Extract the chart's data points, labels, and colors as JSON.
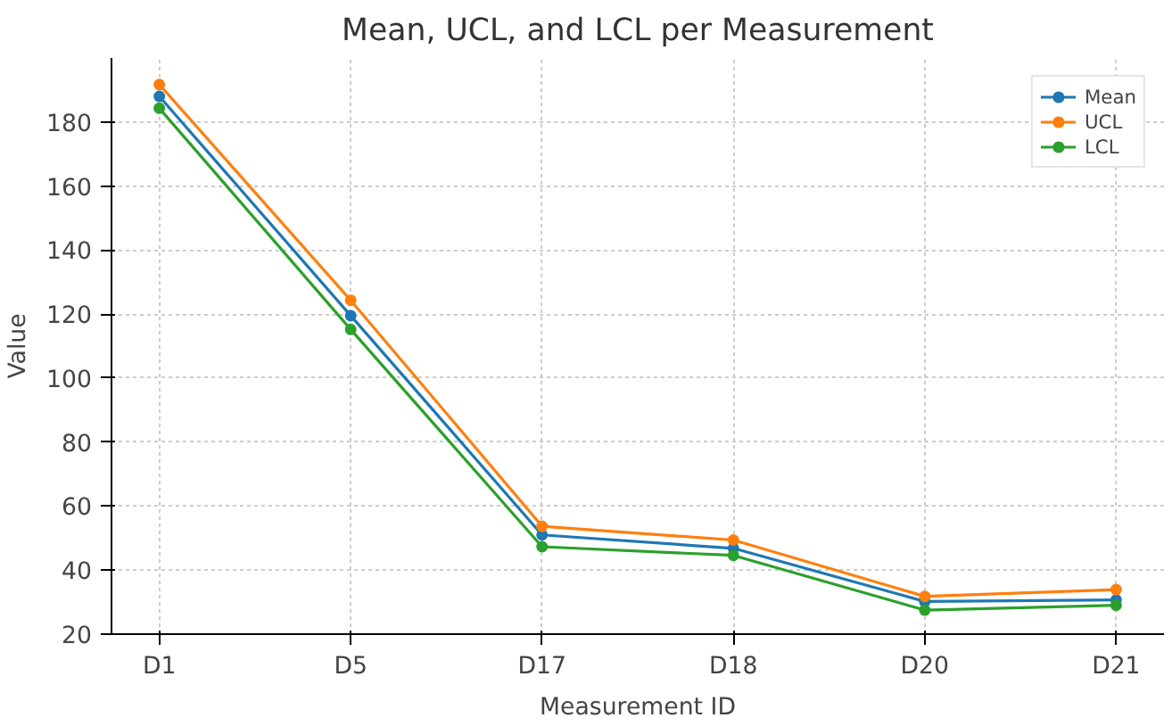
{
  "chart_data": {
    "type": "line",
    "title": "Mean, UCL, and LCL per Measurement",
    "xlabel": "Measurement ID",
    "ylabel": "Value",
    "categories": [
      "D1",
      "D5",
      "D17",
      "D18",
      "D20",
      "D21"
    ],
    "series": [
      {
        "name": "Mean",
        "color": "#1f77b4",
        "values": [
          188,
          119.5,
          51,
          46.8,
          30.2,
          30.7
        ]
      },
      {
        "name": "UCL",
        "color": "#ff7f0e",
        "values": [
          191.7,
          124.3,
          53.7,
          49.4,
          31.8,
          33.9
        ]
      },
      {
        "name": "LCL",
        "color": "#2ca02c",
        "values": [
          184.3,
          115.2,
          47.3,
          44.6,
          27.5,
          29
        ]
      }
    ],
    "ylim": [
      20,
      200
    ],
    "yticks": [
      20,
      40,
      60,
      80,
      100,
      120,
      140,
      160,
      180
    ],
    "grid": true,
    "legend": "top right",
    "marker": "circle",
    "line_style": "solid"
  }
}
